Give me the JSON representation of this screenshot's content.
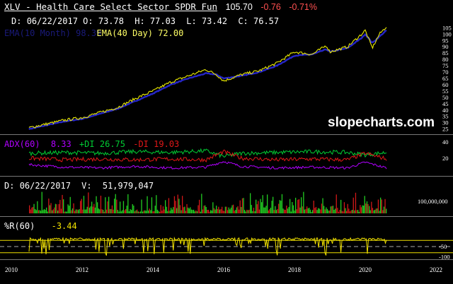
{
  "colors": {
    "price": "#e8e800",
    "ema": "#2626c8",
    "adx": "#b000ff",
    "plus_di": "#00cc33",
    "minus_di": "#e01818",
    "pctr": "#f0e000",
    "up_volume": "#22cc22",
    "down_volume": "#d01818",
    "change_negative": "#ff5050",
    "title": "#ffffff",
    "watermark": "#ffffff"
  },
  "header": {
    "title": "XLV - Health Care Select Sector SPDR Fun",
    "last_price": "105.70",
    "change": "-0.76",
    "change_pct": "-0.71%"
  },
  "ohlc": {
    "date_label": "D:",
    "date": "06/22/2017",
    "open_label": "O:",
    "open": "73.78",
    "high_label": "H:",
    "high": "77.03",
    "low_label": "L:",
    "low": "73.42",
    "close_label": "C:",
    "close": "76.57"
  },
  "legend": {
    "ema_hidden": "EMA(10 Month) 98.39",
    "ema_visible": "EMA(40 Day) 72.00"
  },
  "watermark": "slopecharts.com",
  "price_axis": [
    "105",
    "100",
    "95",
    "90",
    "85",
    "80",
    "75",
    "70",
    "65",
    "60",
    "55",
    "50",
    "45",
    "40",
    "35",
    "30",
    "25"
  ],
  "adx_panel": {
    "adx_label": "ADX(60)",
    "adx_value": "8.33",
    "plus_label": "+DI",
    "plus_value": "26.75",
    "minus_label": "-DI",
    "minus_value": "19.03",
    "axis": [
      "40",
      "20"
    ]
  },
  "volume_panel": {
    "date_label": "D:",
    "date": "06/22/2017",
    "vol_label": "V:",
    "volume": "51,979,047",
    "axis": [
      "100,000,000"
    ]
  },
  "pctr_panel": {
    "label": "%R(60)",
    "value": "-3.44",
    "axis": [
      "-50",
      "-100"
    ]
  },
  "x_axis": [
    "2010",
    "2012",
    "2014",
    "2016",
    "2018",
    "2020",
    "2022"
  ],
  "chart_data": [
    {
      "type": "line",
      "title": "XLV - Health Care Select Sector SPDR Fun",
      "x": [
        2010.5,
        2011.0,
        2011.5,
        2012.0,
        2012.5,
        2013.0,
        2013.5,
        2014.0,
        2014.5,
        2015.0,
        2015.5,
        2015.8,
        2016.0,
        2016.5,
        2017.0,
        2017.5,
        2018.0,
        2018.5,
        2018.9,
        2019.0,
        2019.5,
        2019.9,
        2020.0,
        2020.2,
        2020.4,
        2020.6
      ],
      "series": [
        {
          "name": "XLV",
          "values": [
            26,
            29,
            32,
            34,
            38,
            42,
            49,
            55,
            62,
            67,
            72,
            68,
            63,
            68,
            71,
            77,
            86,
            84,
            91,
            86,
            90,
            100,
            103,
            89,
            100,
            106
          ]
        },
        {
          "name": "EMA(40 Day)",
          "values": [
            25,
            28,
            31,
            33,
            37,
            41,
            47,
            53,
            60,
            65,
            69,
            68,
            65,
            67,
            70,
            75,
            83,
            84,
            88,
            86,
            89,
            97,
            100,
            93,
            98,
            103
          ]
        }
      ],
      "ylim": [
        22,
        108
      ]
    },
    {
      "type": "line",
      "x": [
        2010.5,
        2011.5,
        2012.5,
        2013.5,
        2014.5,
        2015.5,
        2016.0,
        2016.5,
        2017.5,
        2018.5,
        2019.5,
        2020.0,
        2020.6
      ],
      "series": [
        {
          "name": "ADX(60)",
          "values": [
            12,
            9,
            8,
            10,
            8,
            9,
            16,
            10,
            8,
            9,
            8,
            15,
            8
          ]
        },
        {
          "name": "+DI",
          "values": [
            26,
            27,
            26,
            28,
            27,
            29,
            22,
            26,
            27,
            28,
            27,
            24,
            27
          ]
        },
        {
          "name": "-DI",
          "values": [
            20,
            18,
            19,
            18,
            19,
            18,
            28,
            20,
            18,
            19,
            18,
            26,
            19
          ]
        }
      ],
      "ylim": [
        0,
        45
      ]
    },
    {
      "type": "line",
      "x": [
        2010.5,
        2011.0,
        2011.3,
        2011.6,
        2012.0,
        2012.4,
        2012.8,
        2013.2,
        2013.6,
        2014.0,
        2014.4,
        2014.8,
        2015.2,
        2015.6,
        2016.0,
        2016.4,
        2016.8,
        2017.2,
        2017.6,
        2018.0,
        2018.4,
        2018.8,
        2019.2,
        2019.6,
        2020.0,
        2020.2,
        2020.6
      ],
      "series": [
        {
          "name": "%R(60)",
          "values": [
            -15,
            -10,
            -95,
            -20,
            -10,
            -60,
            -15,
            -12,
            -40,
            -10,
            -70,
            -15,
            -10,
            -50,
            -95,
            -20,
            -60,
            -10,
            -15,
            -45,
            -10,
            -85,
            -20,
            -55,
            -10,
            -98,
            -3.44
          ]
        }
      ],
      "ylim": [
        -105,
        5
      ]
    }
  ]
}
